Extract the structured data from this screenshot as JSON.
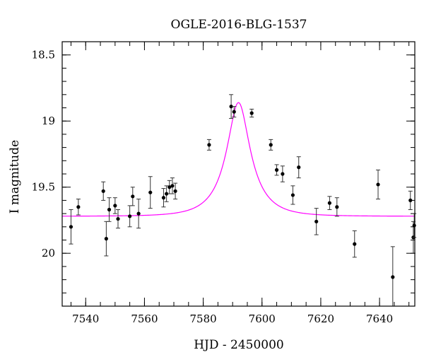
{
  "chart_data": {
    "type": "scatter",
    "title": "OGLE-2016-BLG-1537",
    "xlabel": "HJD - 2450000",
    "ylabel": "I magnitude",
    "xlim": [
      7532,
      7652
    ],
    "ylim": [
      20.4,
      18.4
    ],
    "y_inverted": true,
    "xticks_major": [
      7540,
      7560,
      7580,
      7600,
      7620,
      7640
    ],
    "xticks_minor_step": 5,
    "xtick_labels": [
      "7540",
      "7560",
      "7580",
      "7600",
      "7620",
      "7640"
    ],
    "yticks_major": [
      18.5,
      19,
      19.5,
      20
    ],
    "yticks_minor_step": 0.1,
    "ytick_labels": [
      "18.5",
      "19",
      "19.5",
      "20"
    ],
    "grid": false,
    "point_color": "#000000",
    "errorbar_color": "#333333",
    "model_color": "#ff00ff",
    "model": {
      "type": "microlensing-fit",
      "t0": 7592.0,
      "u0": 0.4,
      "tE": 10.0,
      "baseline_mag": 19.72,
      "peak_mag": 18.86
    },
    "points": [
      {
        "x": 7535.0,
        "y": 19.8,
        "err": 0.13
      },
      {
        "x": 7537.5,
        "y": 19.65,
        "err": 0.06
      },
      {
        "x": 7546.0,
        "y": 19.53,
        "err": 0.07
      },
      {
        "x": 7547.0,
        "y": 19.89,
        "err": 0.13
      },
      {
        "x": 7548.0,
        "y": 19.67,
        "err": 0.09
      },
      {
        "x": 7550.0,
        "y": 19.64,
        "err": 0.06
      },
      {
        "x": 7551.0,
        "y": 19.74,
        "err": 0.07
      },
      {
        "x": 7555.0,
        "y": 19.72,
        "err": 0.08
      },
      {
        "x": 7556.0,
        "y": 19.57,
        "err": 0.07
      },
      {
        "x": 7558.0,
        "y": 19.7,
        "err": 0.11
      },
      {
        "x": 7562.0,
        "y": 19.54,
        "err": 0.12
      },
      {
        "x": 7566.5,
        "y": 19.58,
        "err": 0.07
      },
      {
        "x": 7567.5,
        "y": 19.55,
        "err": 0.06
      },
      {
        "x": 7568.5,
        "y": 19.5,
        "err": 0.05
      },
      {
        "x": 7569.5,
        "y": 19.49,
        "err": 0.06
      },
      {
        "x": 7570.5,
        "y": 19.53,
        "err": 0.06
      },
      {
        "x": 7582.0,
        "y": 19.18,
        "err": 0.04
      },
      {
        "x": 7589.5,
        "y": 18.89,
        "err": 0.09
      },
      {
        "x": 7590.5,
        "y": 18.93,
        "err": 0.04
      },
      {
        "x": 7596.5,
        "y": 18.94,
        "err": 0.03
      },
      {
        "x": 7603.0,
        "y": 19.18,
        "err": 0.04
      },
      {
        "x": 7605.0,
        "y": 19.37,
        "err": 0.04
      },
      {
        "x": 7607.0,
        "y": 19.4,
        "err": 0.06
      },
      {
        "x": 7610.5,
        "y": 19.56,
        "err": 0.07
      },
      {
        "x": 7612.5,
        "y": 19.35,
        "err": 0.08
      },
      {
        "x": 7618.5,
        "y": 19.76,
        "err": 0.1
      },
      {
        "x": 7623.0,
        "y": 19.62,
        "err": 0.05
      },
      {
        "x": 7625.5,
        "y": 19.65,
        "err": 0.07
      },
      {
        "x": 7631.5,
        "y": 19.93,
        "err": 0.1
      },
      {
        "x": 7639.5,
        "y": 19.48,
        "err": 0.11
      },
      {
        "x": 7644.5,
        "y": 20.18,
        "err": 0.23
      },
      {
        "x": 7650.5,
        "y": 19.6,
        "err": 0.07
      },
      {
        "x": 7651.5,
        "y": 19.88,
        "err": 0.12
      },
      {
        "x": 7651.8,
        "y": 19.79,
        "err": 0.09
      }
    ]
  }
}
